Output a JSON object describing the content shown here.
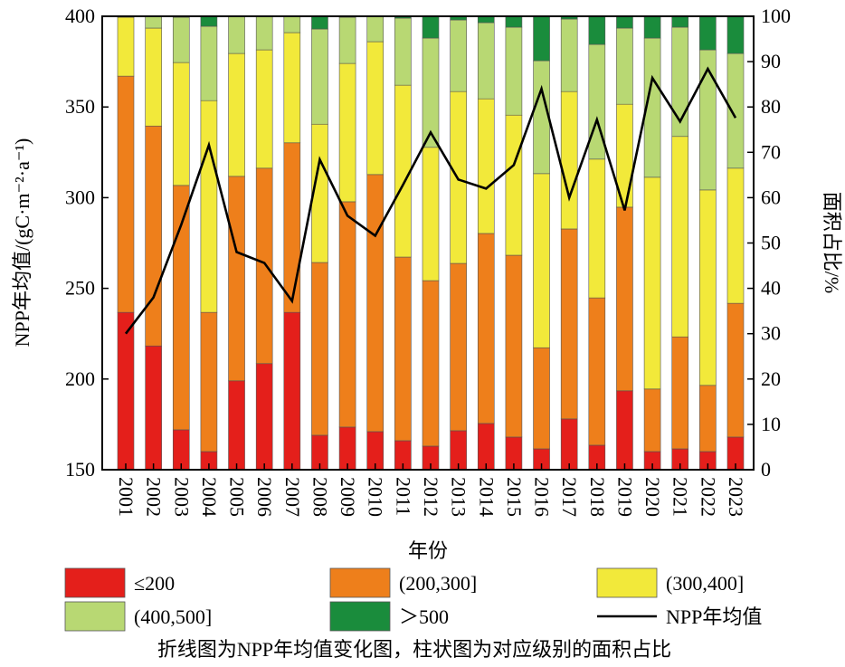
{
  "chart_data": {
    "type": "bar+line",
    "xlabel": "年份",
    "ylabel_left": "NPP年均值/(gC·m⁻²·a⁻¹)",
    "ylabel_right": "面积占比/%",
    "ylim_left": [
      150,
      400
    ],
    "ylim_right": [
      0,
      100
    ],
    "yticks_left": [
      150,
      200,
      250,
      300,
      350,
      400
    ],
    "yticks_right": [
      0,
      10,
      20,
      30,
      40,
      50,
      60,
      70,
      80,
      90,
      100
    ],
    "grid": false,
    "legend_position": "bottom",
    "categories": [
      "2001",
      "2002",
      "2003",
      "2004",
      "2005",
      "2006",
      "2007",
      "2008",
      "2009",
      "2010",
      "2011",
      "2012",
      "2013",
      "2014",
      "2015",
      "2016",
      "2017",
      "2018",
      "2019",
      "2020",
      "2021",
      "2022",
      "2023"
    ],
    "bar_series": [
      {
        "name": "≤200",
        "color": "#e41f1b",
        "values": [
          34.7,
          27.3,
          8.8,
          4.0,
          19.6,
          23.4,
          34.7,
          7.6,
          9.4,
          8.4,
          6.4,
          5.2,
          8.6,
          10.2,
          7.2,
          4.6,
          11.2,
          5.4,
          17.4,
          4.0,
          4.6,
          4.0,
          7.2
        ]
      },
      {
        "name": "(200,300]",
        "color": "#ee7f1b",
        "values": [
          52.1,
          48.5,
          53.9,
          30.7,
          45.1,
          43.1,
          37.4,
          38.1,
          49.7,
          56.7,
          40.5,
          36.5,
          36.9,
          41.9,
          40.1,
          22.3,
          41.9,
          32.5,
          40.5,
          13.8,
          24.7,
          14.6,
          29.5
        ]
      },
      {
        "name": "(300,400]",
        "color": "#f2e93a",
        "values": [
          13.0,
          21.6,
          27.1,
          46.7,
          27.1,
          26.1,
          24.3,
          30.5,
          30.5,
          29.3,
          37.9,
          29.4,
          37.9,
          29.7,
          30.9,
          38.4,
          30.3,
          30.6,
          22.7,
          46.7,
          44.2,
          43.1,
          29.8
        ]
      },
      {
        "name": "(400,500]",
        "color": "#b8d873",
        "values": [
          0.2,
          2.6,
          10.0,
          16.4,
          8.2,
          7.4,
          3.6,
          21.0,
          10.2,
          5.6,
          14.8,
          24.1,
          15.8,
          16.8,
          19.4,
          24.9,
          16.0,
          25.3,
          16.8,
          30.7,
          24.1,
          30.9,
          25.3
        ]
      },
      {
        "name": "＞500",
        "color": "#1a8c3c",
        "values": [
          0,
          0,
          0.2,
          2.2,
          0,
          0,
          0,
          2.8,
          0.2,
          0,
          0.4,
          4.8,
          0.8,
          1.4,
          2.4,
          9.8,
          0.6,
          6.2,
          2.6,
          4.8,
          2.4,
          7.4,
          8.2
        ]
      }
    ],
    "line_series": {
      "name": "NPP年均值",
      "color": "#000000",
      "axis": "left",
      "values": [
        225,
        245,
        285,
        329,
        270,
        264,
        243,
        321,
        290,
        279,
        307,
        336,
        310,
        305,
        318,
        360,
        300,
        343,
        293,
        366,
        342,
        371,
        344
      ]
    },
    "caption": "折线图为NPP年均值变化图，柱状图为对应级别的面积占比"
  }
}
